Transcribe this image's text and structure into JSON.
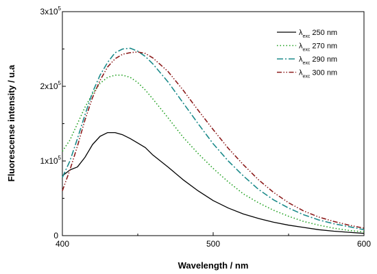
{
  "chart_data": {
    "type": "line",
    "title": "",
    "xlabel": "Wavelength / nm",
    "ylabel": "Fluorescense intensity / u.a",
    "xlim": [
      400,
      600
    ],
    "ylim": [
      0,
      300000
    ],
    "x_ticks": [
      {
        "value": 400,
        "label": "400"
      },
      {
        "value": 500,
        "label": "500"
      },
      {
        "value": 600,
        "label": "600"
      }
    ],
    "y_ticks": [
      {
        "value": 0,
        "label": "0",
        "exp": ""
      },
      {
        "value": 100000,
        "label": "1x10",
        "exp": "5"
      },
      {
        "value": 200000,
        "label": "2x10",
        "exp": "5"
      },
      {
        "value": 300000,
        "label": "3x10",
        "exp": "5"
      }
    ],
    "grid": false,
    "legend_position": "top-right",
    "series": [
      {
        "name": "250 nm",
        "symbol": "λ",
        "sub": "exc",
        "color": "#000000",
        "dash": "solid",
        "x": [
          400,
          405,
          410,
          415,
          420,
          425,
          430,
          435,
          440,
          445,
          450,
          455,
          460,
          470,
          480,
          490,
          500,
          510,
          520,
          530,
          540,
          550,
          560,
          570,
          580,
          590,
          600
        ],
        "y": [
          80000,
          88000,
          92000,
          105000,
          122000,
          133000,
          138000,
          138000,
          135000,
          130000,
          124000,
          118000,
          108000,
          92000,
          75000,
          60000,
          47000,
          37000,
          29000,
          23000,
          18000,
          14000,
          11000,
          8000,
          6000,
          4500,
          3000
        ]
      },
      {
        "name": "270 nm",
        "symbol": "λ",
        "sub": "exc",
        "color": "#1a9e1a",
        "dash": "dotted",
        "x": [
          400,
          405,
          410,
          415,
          420,
          425,
          430,
          435,
          440,
          445,
          450,
          455,
          460,
          470,
          480,
          490,
          500,
          510,
          520,
          530,
          540,
          550,
          560,
          570,
          580,
          590,
          600
        ],
        "y": [
          113000,
          128000,
          150000,
          172000,
          190000,
          204000,
          212000,
          215000,
          215000,
          212000,
          205000,
          195000,
          183000,
          158000,
          132000,
          110000,
          90000,
          72000,
          56000,
          44000,
          34000,
          26000,
          19000,
          14000,
          10000,
          7000,
          5000
        ]
      },
      {
        "name": "290 nm",
        "symbol": "λ",
        "sub": "exc",
        "color": "#1a8a8a",
        "dash": "dashdot",
        "x": [
          400,
          405,
          410,
          415,
          420,
          425,
          430,
          435,
          440,
          445,
          450,
          455,
          460,
          470,
          480,
          490,
          500,
          510,
          520,
          530,
          540,
          550,
          560,
          570,
          580,
          590,
          600
        ],
        "y": [
          78000,
          100000,
          130000,
          162000,
          192000,
          215000,
          232000,
          245000,
          250000,
          251000,
          247000,
          240000,
          230000,
          206000,
          178000,
          150000,
          123000,
          100000,
          80000,
          62000,
          48000,
          37000,
          28000,
          21000,
          16000,
          12000,
          8000
        ]
      },
      {
        "name": "300 nm",
        "symbol": "λ",
        "sub": "exc",
        "color": "#8b1a1a",
        "dash": "dashdotdot",
        "x": [
          400,
          405,
          410,
          415,
          420,
          425,
          430,
          435,
          440,
          445,
          450,
          455,
          460,
          470,
          480,
          490,
          500,
          510,
          520,
          530,
          540,
          550,
          560,
          570,
          580,
          590,
          600
        ],
        "y": [
          60000,
          88000,
          120000,
          155000,
          185000,
          208000,
          226000,
          237000,
          243000,
          245000,
          246000,
          244000,
          238000,
          220000,
          195000,
          168000,
          142000,
          117000,
          95000,
          75000,
          58000,
          44000,
          33000,
          25000,
          19000,
          14000,
          10000
        ]
      }
    ]
  }
}
